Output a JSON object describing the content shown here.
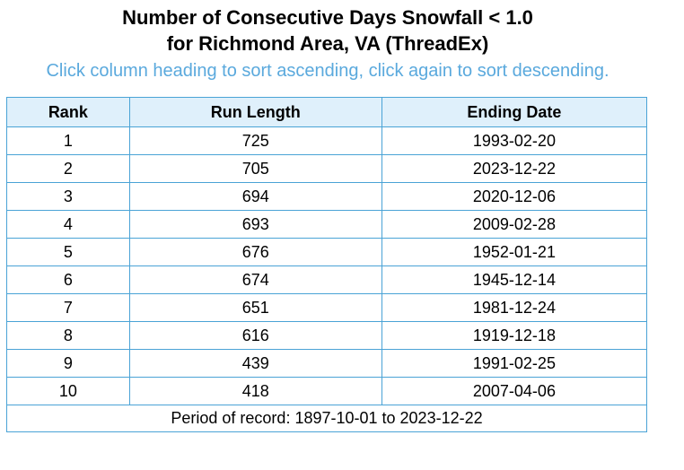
{
  "header": {
    "title_line1": "Number of Consecutive Days Snowfall < 1.0",
    "title_line2": "for Richmond Area, VA (ThreadEx)",
    "sort_hint": "Click column heading to sort ascending, click again to sort descending."
  },
  "table": {
    "columns": [
      "Rank",
      "Run Length",
      "Ending Date"
    ],
    "rows": [
      {
        "rank": "1",
        "run_length": "725",
        "ending_date": "1993-02-20"
      },
      {
        "rank": "2",
        "run_length": "705",
        "ending_date": "2023-12-22"
      },
      {
        "rank": "3",
        "run_length": "694",
        "ending_date": "2020-12-06"
      },
      {
        "rank": "4",
        "run_length": "693",
        "ending_date": "2009-02-28"
      },
      {
        "rank": "5",
        "run_length": "676",
        "ending_date": "1952-01-21"
      },
      {
        "rank": "6",
        "run_length": "674",
        "ending_date": "1945-12-14"
      },
      {
        "rank": "7",
        "run_length": "651",
        "ending_date": "1981-12-24"
      },
      {
        "rank": "8",
        "run_length": "616",
        "ending_date": "1919-12-18"
      },
      {
        "rank": "9",
        "run_length": "439",
        "ending_date": "1991-02-25"
      },
      {
        "rank": "10",
        "run_length": "418",
        "ending_date": "2007-04-06"
      }
    ],
    "footer": "Period of record: 1897-10-01 to 2023-12-22"
  },
  "colors": {
    "hint": "#5aa9dd",
    "border": "#4aa3d6",
    "header_bg": "#dff0fb"
  }
}
